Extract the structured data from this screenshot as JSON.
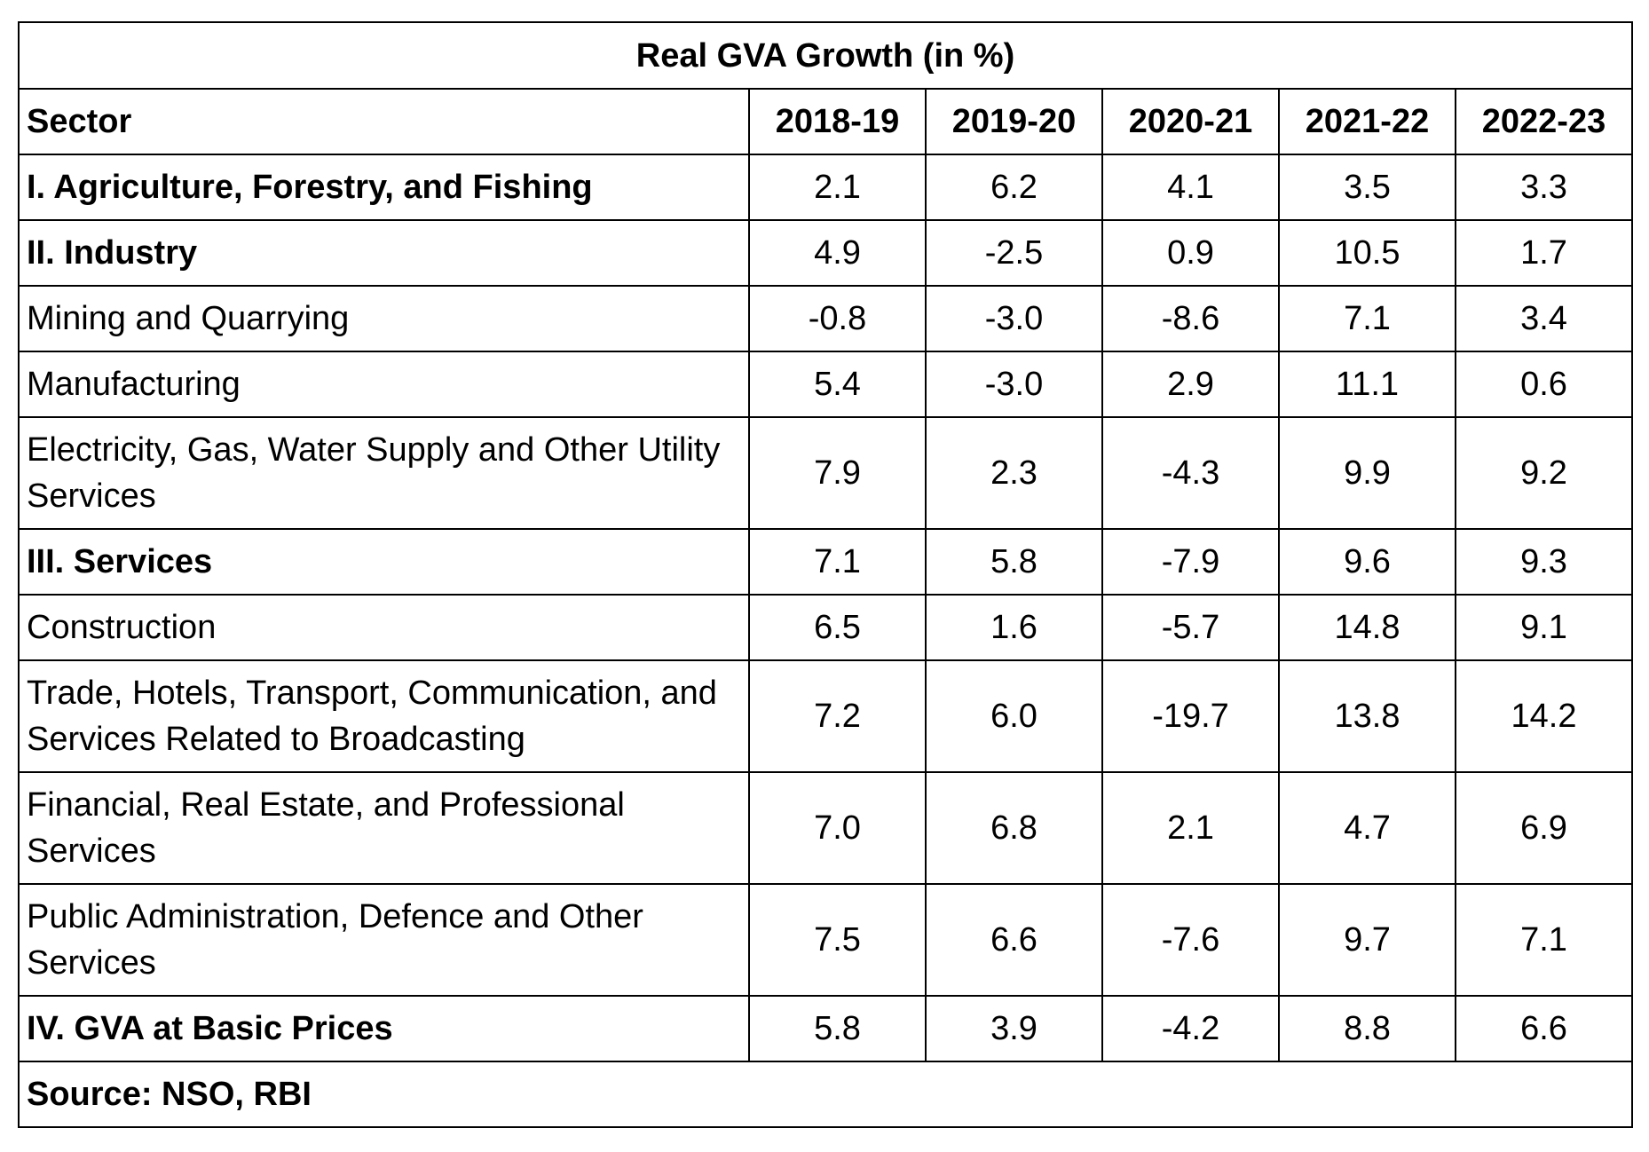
{
  "title": "Real GVA Growth (in %)",
  "header": {
    "sector": "Sector",
    "years": [
      "2018-19",
      "2019-20",
      "2020-21",
      "2021-22",
      "2022-23"
    ]
  },
  "rows": [
    {
      "sector": "I. Agriculture, Forestry, and Fishing",
      "values": [
        "2.1",
        "6.2",
        "4.1",
        "3.5",
        "3.3"
      ]
    },
    {
      "sector": "II. Industry",
      "values": [
        "4.9",
        "-2.5",
        "0.9",
        "10.5",
        "1.7"
      ]
    },
    {
      "sector": "Mining and Quarrying",
      "values": [
        "-0.8",
        "-3.0",
        "-8.6",
        "7.1",
        "3.4"
      ]
    },
    {
      "sector": "Manufacturing",
      "values": [
        "5.4",
        "-3.0",
        "2.9",
        "11.1",
        "0.6"
      ]
    },
    {
      "sector": "Electricity, Gas, Water Supply and Other Utility Services",
      "values": [
        "7.9",
        "2.3",
        "-4.3",
        "9.9",
        "9.2"
      ]
    },
    {
      "sector": "III. Services",
      "values": [
        "7.1",
        "5.8",
        "-7.9",
        "9.6",
        "9.3"
      ]
    },
    {
      "sector": "Construction",
      "values": [
        "6.5",
        "1.6",
        "-5.7",
        "14.8",
        "9.1"
      ]
    },
    {
      "sector": "Trade, Hotels, Transport, Communication, and Services Related to Broadcasting",
      "values": [
        "7.2",
        "6.0",
        "-19.7",
        "13.8",
        "14.2"
      ]
    },
    {
      "sector": "Financial, Real Estate, and Professional Services",
      "values": [
        "7.0",
        "6.8",
        "2.1",
        "4.7",
        "6.9"
      ]
    },
    {
      "sector": "Public Administration, Defence and Other Services",
      "values": [
        "7.5",
        "6.6",
        "-7.6",
        "9.7",
        "7.1"
      ]
    },
    {
      "sector": "IV. GVA at Basic Prices",
      "values": [
        "5.8",
        "3.9",
        "-4.2",
        "8.8",
        "6.6"
      ]
    }
  ],
  "source": "Source: NSO, RBI"
}
